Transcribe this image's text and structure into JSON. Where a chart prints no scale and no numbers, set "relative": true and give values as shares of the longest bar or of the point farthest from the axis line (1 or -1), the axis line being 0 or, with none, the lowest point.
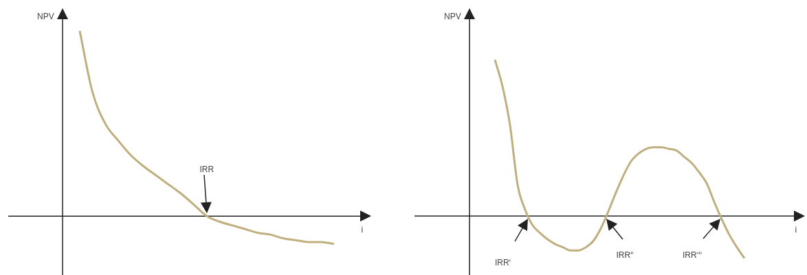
{
  "chart_data": [
    {
      "type": "line",
      "relative": true,
      "xlabel": "i",
      "ylabel": "NPV",
      "marker": "none",
      "line_style": "solid",
      "tick_labels": false,
      "legend": false,
      "categories": [
        null,
        null,
        null,
        null,
        null,
        null,
        null,
        null,
        null,
        null,
        null,
        null,
        null,
        null,
        null,
        null,
        null,
        null,
        null,
        null,
        null
      ],
      "series": [
        {
          "color": "#bfae7e",
          "values": [
            1,
            0.67,
            0.5,
            0.41,
            0.33,
            0.27,
            0.22,
            0.17,
            0.12,
            0.06,
            0,
            -0.03,
            -0.05,
            -0.07,
            -0.09,
            -0.1,
            -0.12,
            -0.13,
            -0.14,
            -0.14,
            -0.15
          ]
        }
      ],
      "annotations": [
        "IRR"
      ]
    },
    {
      "type": "line",
      "relative": true,
      "xlabel": "i",
      "ylabel": "NPV",
      "marker": "none",
      "line_style": "solid",
      "tick_labels": false,
      "legend": false,
      "categories": [
        null,
        null,
        null,
        null,
        null,
        null,
        null,
        null,
        null,
        null,
        null,
        null,
        null,
        null,
        null,
        null,
        null,
        null,
        null,
        null,
        null,
        null,
        null,
        null,
        null,
        null,
        null,
        null,
        null,
        null,
        null,
        null,
        null,
        null
      ],
      "series": [
        {
          "color": "#bfae7e",
          "values": [
            1,
            0.83,
            0.58,
            0.2,
            0.04,
            -0.06,
            -0.11,
            -0.15,
            -0.18,
            -0.2,
            -0.22,
            -0.22,
            -0.2,
            -0.16,
            -0.08,
            0.03,
            0.15,
            0.26,
            0.35,
            0.4,
            0.43,
            0.44,
            0.44,
            0.43,
            0.42,
            0.38,
            0.34,
            0.28,
            0.21,
            0.09,
            -0.02,
            -0.12,
            -0.2,
            -0.27
          ]
        }
      ],
      "annotations": [
        "IRR‘",
        "IRR“",
        "IRR‘‘‘"
      ]
    }
  ]
}
